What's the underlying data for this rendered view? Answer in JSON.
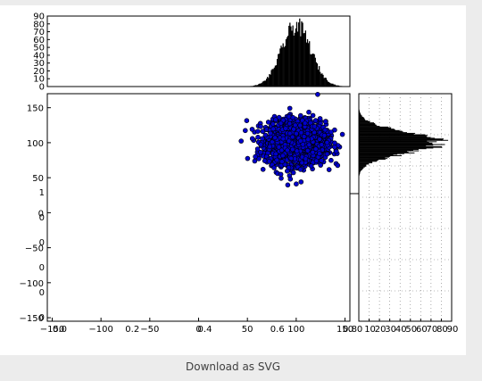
{
  "download_label": "Download as SVG",
  "colors": {
    "background": "#ececec",
    "card": "#ffffff",
    "bars": "#000000",
    "points": "#0000cc",
    "point_edge": "#000000"
  },
  "chart_data": [
    {
      "type": "scatter",
      "panel": "main",
      "description_free": true,
      "x_ticks": [
        "−150",
        "−100",
        "−50",
        "0",
        "50",
        "100",
        "150"
      ],
      "y_ticks": [
        "150",
        "100",
        "50",
        "0",
        "−50",
        "−100",
        "−150"
      ],
      "xlim": [
        -155,
        155
      ],
      "ylim": [
        -155,
        170
      ],
      "cluster": {
        "x_center": 100,
        "y_center": 100,
        "x_spread": 15,
        "y_spread": 15,
        "point_count": 2000
      },
      "outliers": [
        [
          122,
          169
        ],
        [
          94,
          48
        ],
        [
          105,
          44
        ],
        [
          100,
          41
        ]
      ],
      "background_ticks": {
        "x_labels": [
          "0.0",
          "0.2",
          "0.4",
          "0.6",
          "0.8"
        ],
        "y_labels": [
          "1",
          "0",
          "0",
          "0",
          "0",
          "0"
        ]
      }
    },
    {
      "type": "bar",
      "panel": "top-histogram",
      "orientation": "vertical",
      "y_ticks": [
        "90",
        "80",
        "70",
        "60",
        "50",
        "40",
        "30",
        "20",
        "10",
        "0"
      ],
      "ylim": [
        0,
        90
      ],
      "bins": {
        "x_min": -155,
        "x_max": 155,
        "count": 310,
        "peak_x": 100,
        "peak_count": 80,
        "spread": 15
      }
    },
    {
      "type": "bar",
      "panel": "right-histogram",
      "orientation": "horizontal",
      "x_ticks": [
        "0",
        "10",
        "20",
        "30",
        "40",
        "50",
        "60",
        "70",
        "80",
        "90"
      ],
      "xlim": [
        0,
        90
      ],
      "grid": true,
      "bins": {
        "y_min": -155,
        "y_max": 170,
        "count": 325,
        "peak_y": 100,
        "peak_count": 80,
        "spread": 15
      }
    }
  ]
}
